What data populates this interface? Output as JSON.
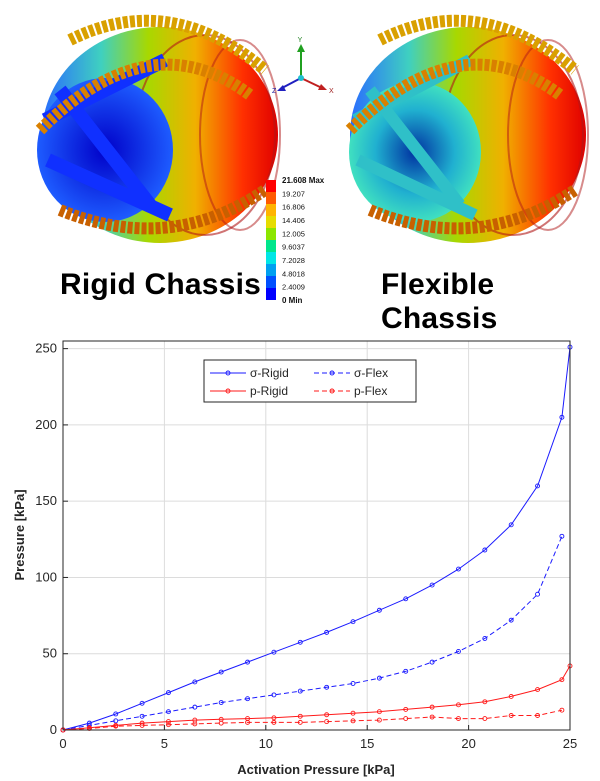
{
  "simulation": {
    "captions": [
      "Rigid Chassis",
      "Flexible Chassis"
    ],
    "legend": {
      "max_label": "21.608 Max",
      "min_label": "0 Min",
      "ticks": [
        "19.207",
        "16.806",
        "14.406",
        "12.005",
        "9.6037",
        "7.2028",
        "4.8018",
        "2.4009"
      ],
      "colors": [
        "#ff0000",
        "#ff5a00",
        "#ffb400",
        "#e6dc00",
        "#8ce600",
        "#00e68c",
        "#00e6e6",
        "#00a0f0",
        "#0050ff",
        "#0000ff"
      ]
    },
    "triad_labels": [
      "Y",
      "Z",
      "X"
    ]
  },
  "chart_data": {
    "type": "line",
    "xlabel": "Activation Pressure [kPa]",
    "ylabel": "Pressure [kPa]",
    "xlim": [
      0,
      25
    ],
    "ylim": [
      0,
      255
    ],
    "xticks": [
      0,
      5,
      10,
      15,
      20,
      25
    ],
    "yticks": [
      0,
      50,
      100,
      150,
      200,
      250
    ],
    "grid": true,
    "legend_position": "top-center",
    "series": [
      {
        "name": "σ-Rigid",
        "color": "#1a1aff",
        "dash": "solid",
        "x": [
          0,
          1.3,
          2.6,
          3.9,
          5.2,
          6.5,
          7.8,
          9.1,
          10.4,
          11.7,
          13.0,
          14.3,
          15.6,
          16.9,
          18.2,
          19.5,
          20.8,
          22.1,
          23.4,
          24.6,
          25
        ],
        "y": [
          0,
          4.5,
          10.5,
          17.5,
          24.5,
          31.5,
          38.0,
          44.5,
          51.0,
          57.5,
          64.0,
          71.0,
          78.5,
          86.0,
          95.0,
          105.5,
          118.0,
          134.5,
          160.0,
          205.0,
          251.0
        ]
      },
      {
        "name": "σ-Flex",
        "color": "#1a1aff",
        "dash": "dashed",
        "x": [
          0,
          1.3,
          2.6,
          3.9,
          5.2,
          6.5,
          7.8,
          9.1,
          10.4,
          11.7,
          13.0,
          14.3,
          15.6,
          16.9,
          18.2,
          19.5,
          20.8,
          22.1,
          23.4,
          24.6
        ],
        "y": [
          0,
          3.0,
          6.0,
          9.0,
          12.0,
          15.0,
          18.0,
          20.5,
          23.0,
          25.5,
          28.0,
          30.5,
          34.0,
          38.5,
          44.5,
          51.5,
          60.0,
          72.0,
          89.0,
          127.0
        ]
      },
      {
        "name": "p-Rigid",
        "color": "#ff1a1a",
        "dash": "solid",
        "x": [
          0,
          1.3,
          2.6,
          3.9,
          5.2,
          6.5,
          7.8,
          9.1,
          10.4,
          11.7,
          13.0,
          14.3,
          15.6,
          16.9,
          18.2,
          19.5,
          20.8,
          22.1,
          23.4,
          24.6,
          25
        ],
        "y": [
          0,
          1.5,
          3.0,
          4.5,
          5.5,
          6.5,
          7.0,
          7.5,
          8.0,
          9.0,
          10.0,
          11.0,
          12.0,
          13.5,
          15.0,
          16.5,
          18.5,
          22.0,
          26.5,
          33.0,
          42.0
        ]
      },
      {
        "name": "p-Flex",
        "color": "#ff1a1a",
        "dash": "dashed",
        "x": [
          0,
          1.3,
          2.6,
          3.9,
          5.2,
          6.5,
          7.8,
          9.1,
          10.4,
          11.7,
          13.0,
          14.3,
          15.6,
          16.9,
          18.2,
          19.5,
          20.8,
          22.1,
          23.4,
          24.6
        ],
        "y": [
          0,
          1.0,
          2.5,
          3.0,
          3.5,
          4.0,
          4.5,
          5.0,
          5.0,
          5.0,
          5.5,
          6.0,
          6.5,
          7.5,
          8.5,
          7.5,
          7.5,
          9.5,
          9.5,
          13.0
        ]
      }
    ]
  }
}
